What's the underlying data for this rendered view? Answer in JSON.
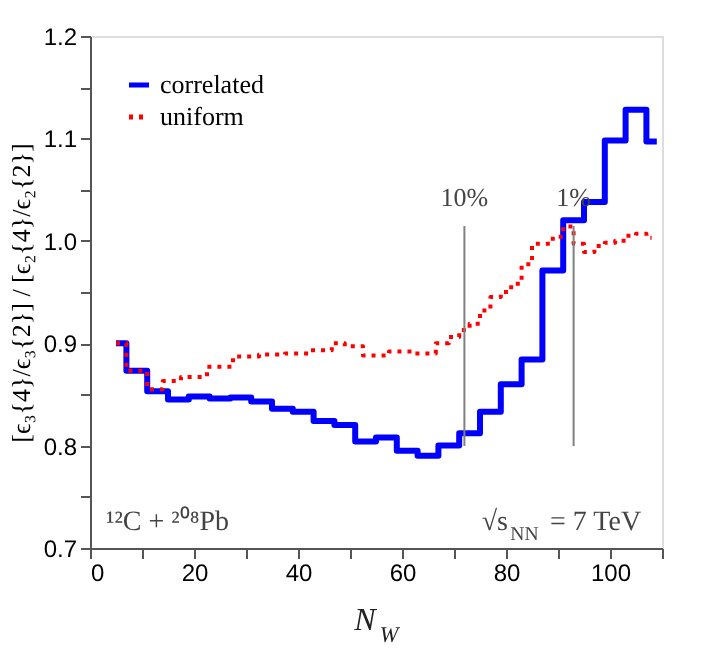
{
  "chart_data": {
    "type": "step",
    "xlabel": "N$_{W}$",
    "ylabel": "[ϵ₃{4}/ϵ₃{2}] / [ϵ₂{4}/ϵ₂{2}]",
    "xlim": [
      0,
      110
    ],
    "ylim": [
      0.7,
      1.2
    ],
    "xticks": [
      0,
      {
        "value": 10,
        "label": null
      },
      20,
      {
        "value": 30,
        "label": null
      },
      40,
      {
        "value": 50,
        "label": null
      },
      60,
      {
        "value": 70,
        "label": null
      },
      80,
      {
        "value": 90,
        "label": null
      },
      100,
      {
        "value": 110,
        "label": null
      }
    ],
    "yticks": [
      0.7,
      {
        "value": 0.75,
        "label": null
      },
      0.8,
      {
        "value": 0.85,
        "label": null
      },
      0.9,
      {
        "value": 0.95,
        "label": null
      },
      {
        "value": 1.0,
        "label": "1.0"
      },
      {
        "value": 1.05,
        "label": null
      },
      1.1,
      {
        "value": 1.15,
        "label": null
      },
      1.2
    ],
    "legend": "top left",
    "grid": false,
    "series": [
      {
        "name": "correlated",
        "color": "#0000ff",
        "line_style": "solid",
        "x": [
          5,
          9,
          13,
          17,
          21,
          25,
          29,
          33,
          37,
          41,
          45,
          49,
          53,
          57,
          61,
          65,
          69,
          73,
          77,
          81,
          85,
          89,
          93,
          97,
          101,
          105,
          109
        ],
        "values": [
          0.9,
          0.873,
          0.853,
          0.845,
          0.848,
          0.846,
          0.847,
          0.843,
          0.836,
          0.833,
          0.824,
          0.82,
          0.804,
          0.808,
          0.795,
          0.79,
          0.8,
          0.812,
          0.833,
          0.86,
          0.884,
          0.971,
          1.02,
          1.038,
          1.098,
          1.128,
          1.097
        ]
      },
      {
        "name": "uniform",
        "color": "#ff0000",
        "line_style": "dotted",
        "x": [
          5,
          9,
          13,
          15,
          20,
          25,
          30,
          35,
          40,
          45,
          48,
          50,
          55,
          60,
          65,
          68,
          70,
          72,
          74,
          76,
          78,
          80,
          82,
          84,
          86,
          88,
          90,
          92,
          94,
          96,
          98,
          100,
          102,
          104,
          106,
          108
        ],
        "values": [
          0.9,
          0.873,
          0.855,
          0.863,
          0.867,
          0.877,
          0.887,
          0.889,
          0.89,
          0.893,
          0.9,
          0.897,
          0.888,
          0.892,
          0.89,
          0.9,
          0.906,
          0.913,
          0.919,
          0.932,
          0.945,
          0.95,
          0.958,
          0.977,
          0.997,
          0.997,
          1.004,
          1.014,
          0.997,
          0.989,
          0.995,
          0.998,
          1.0,
          1.005,
          1.007,
          1.003
        ]
      }
    ],
    "ref_lines": [
      {
        "axis": "x",
        "value": 72,
        "color": "#808080"
      },
      {
        "axis": "x",
        "value": 93,
        "color": "#808080"
      }
    ],
    "annotations": [
      "10%",
      "1%",
      "¹²C + ²⁰⁸Pb",
      "√s$_{NN}$ = 7 TeV"
    ]
  }
}
